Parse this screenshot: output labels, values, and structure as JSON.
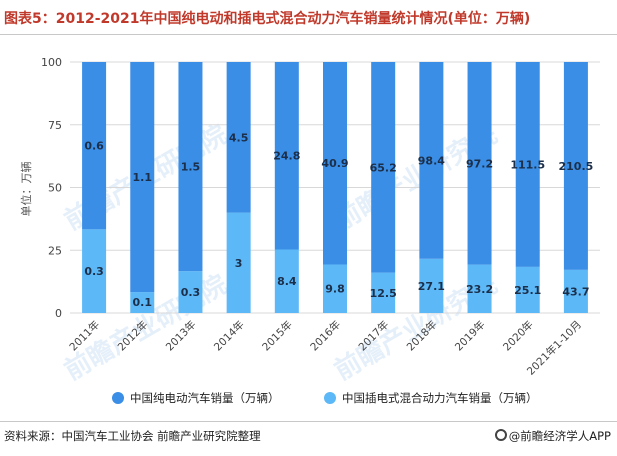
{
  "header": {
    "title": "图表5：2012-2021年中国纯电动和插电式混合动力汽车销量统计情况(单位：万辆)"
  },
  "footer": {
    "source": "资料来源：中国汽车工业协会 前瞻产业研究院整理",
    "brand": "@前瞻经济学人APP"
  },
  "watermark": {
    "text": "前瞻产业研究院"
  },
  "colors": {
    "series1": "#3a8ee6",
    "series2": "#5cb8f7"
  },
  "chart_data": {
    "type": "bar",
    "stacked": "percent",
    "categories": [
      "2011年",
      "2012年",
      "2013年",
      "2014年",
      "2015年",
      "2016年",
      "2017年",
      "2018年",
      "2019年",
      "2020年",
      "2021年1-10月"
    ],
    "series": [
      {
        "name": "中国纯电动汽车销量（万辆）",
        "values": [
          0.6,
          1.1,
          1.5,
          4.5,
          24.8,
          40.9,
          65.2,
          98.4,
          97.2,
          111.5,
          210.5
        ]
      },
      {
        "name": "中国插电式混合动力汽车销量（万辆）",
        "values": [
          0.3,
          0.1,
          0.3,
          3,
          8.4,
          9.8,
          12.5,
          27.1,
          23.2,
          25.1,
          43.7
        ]
      }
    ],
    "ylabel": "单位：万辆",
    "ylim": [
      0,
      100
    ],
    "yticks": [
      "0",
      "25",
      "50",
      "75",
      "100"
    ],
    "grid": true,
    "legend_position": "bottom"
  }
}
